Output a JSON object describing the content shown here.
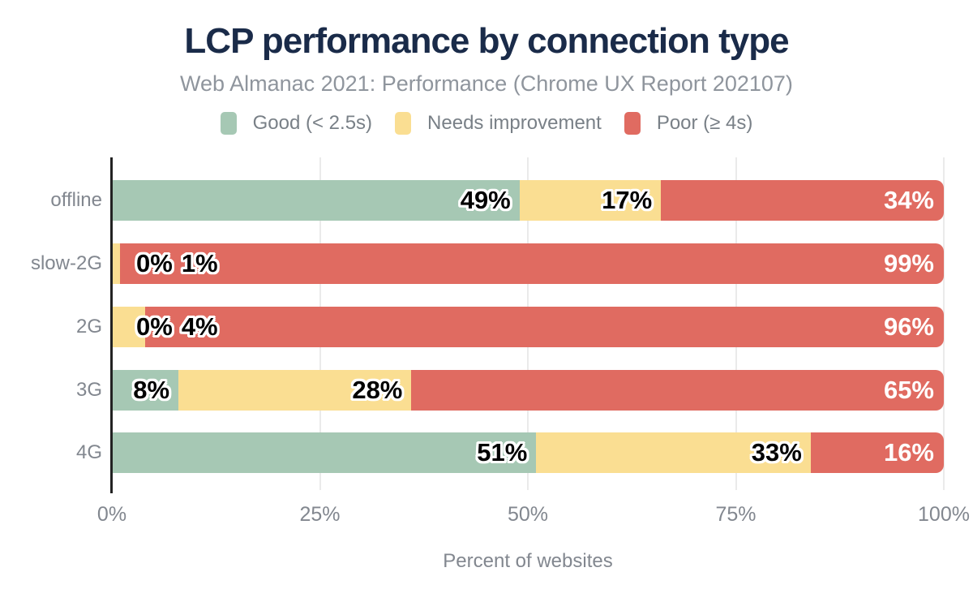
{
  "chart_data": {
    "type": "bar",
    "variant": "horizontal-stacked",
    "title": "LCP performance by connection type",
    "subtitle": "Web Almanac 2021: Performance (Chrome UX Report 202107)",
    "xlabel": "Percent of websites",
    "categories": [
      "offline",
      "slow-2G",
      "2G",
      "3G",
      "4G"
    ],
    "series": [
      {
        "name": "Good (< 2.5s)",
        "color": "#a6c8b4",
        "values": [
          49,
          0,
          0,
          8,
          51
        ]
      },
      {
        "name": "Needs improvement",
        "color": "#fade92",
        "values": [
          17,
          1,
          4,
          28,
          33
        ]
      },
      {
        "name": "Poor (≥ 4s)",
        "color": "#e06b61",
        "values": [
          34,
          99,
          96,
          65,
          16
        ]
      }
    ],
    "value_label_suffix": "%",
    "x_ticks": [
      {
        "label": "0%",
        "value": 0
      },
      {
        "label": "25%",
        "value": 25
      },
      {
        "label": "50%",
        "value": 50
      },
      {
        "label": "75%",
        "value": 75
      },
      {
        "label": "100%",
        "value": 100
      }
    ],
    "xlim": [
      0,
      100
    ],
    "grid": "vertical",
    "legend_position": "top"
  },
  "colors": {
    "background": "#ffffff",
    "title_text": "#1a2b49",
    "subtitle_text": "#8f959d",
    "legend_text": "#798087",
    "axis_text": "#82878f",
    "gridline": "#eaeaea",
    "axis_line": "#222222",
    "value_label_dark": "#000000",
    "value_label_light": "#ffffff"
  }
}
